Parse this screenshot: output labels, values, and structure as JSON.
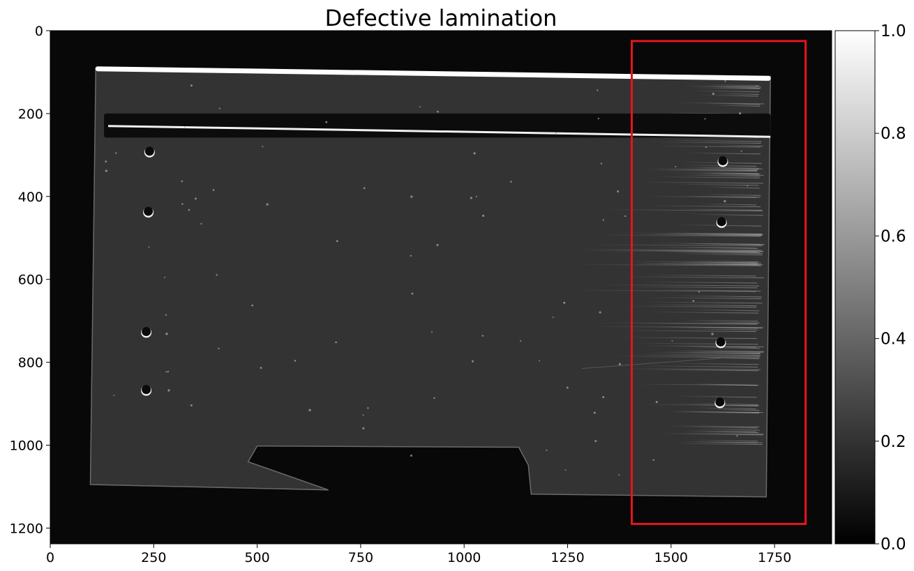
{
  "chart_data": {
    "type": "heatmap",
    "title": "Defective lamination",
    "xlabel": "",
    "ylabel": "",
    "image_extent": {
      "width": 1888,
      "height": 1238
    },
    "xlim": [
      0,
      1888
    ],
    "ylim": [
      1238,
      0
    ],
    "x_ticks": [
      0,
      250,
      500,
      750,
      1000,
      1250,
      1500,
      1750
    ],
    "x_tick_labels": [
      "0",
      "250",
      "500",
      "750",
      "1000",
      "1250",
      "1500",
      "1750"
    ],
    "y_ticks": [
      0,
      200,
      400,
      600,
      800,
      1000,
      1200
    ],
    "y_tick_labels": [
      "0",
      "200",
      "400",
      "600",
      "800",
      "1000",
      "1200"
    ],
    "colormap": "gray",
    "colorbar": {
      "range": [
        0.0,
        1.0
      ],
      "ticks": [
        0.0,
        0.2,
        0.4,
        0.6,
        0.8,
        1.0
      ],
      "tick_labels": [
        "0.0",
        "0.2",
        "0.4",
        "0.6",
        "0.8",
        "1.0"
      ]
    },
    "annotations": [
      {
        "type": "rectangle",
        "color": "#e8141c",
        "x": [
          1405,
          1825
        ],
        "y": [
          25,
          1190
        ]
      }
    ],
    "scene": {
      "background_level": 0.03,
      "panel_level": 0.2,
      "panel_outline": [
        [
          110,
          90
        ],
        [
          1740,
          110
        ],
        [
          1730,
          1125
        ],
        [
          1162,
          1118
        ],
        [
          1155,
          1048
        ],
        [
          1132,
          1005
        ],
        [
          500,
          1002
        ],
        [
          478,
          1040
        ],
        [
          672,
          1108
        ],
        [
          97,
          1095
        ]
      ],
      "bright_edge": {
        "from": [
          115,
          92
        ],
        "to": [
          1735,
          115
        ],
        "level": 1.0
      },
      "slot": {
        "x": [
          130,
          1740
        ],
        "y": [
          200,
          258
        ]
      },
      "holes": [
        {
          "x": 240,
          "y": 295
        },
        {
          "x": 237,
          "y": 440
        },
        {
          "x": 232,
          "y": 730
        },
        {
          "x": 232,
          "y": 870
        },
        {
          "x": 1625,
          "y": 318
        },
        {
          "x": 1622,
          "y": 465
        },
        {
          "x": 1620,
          "y": 755
        },
        {
          "x": 1618,
          "y": 900
        }
      ]
    }
  }
}
